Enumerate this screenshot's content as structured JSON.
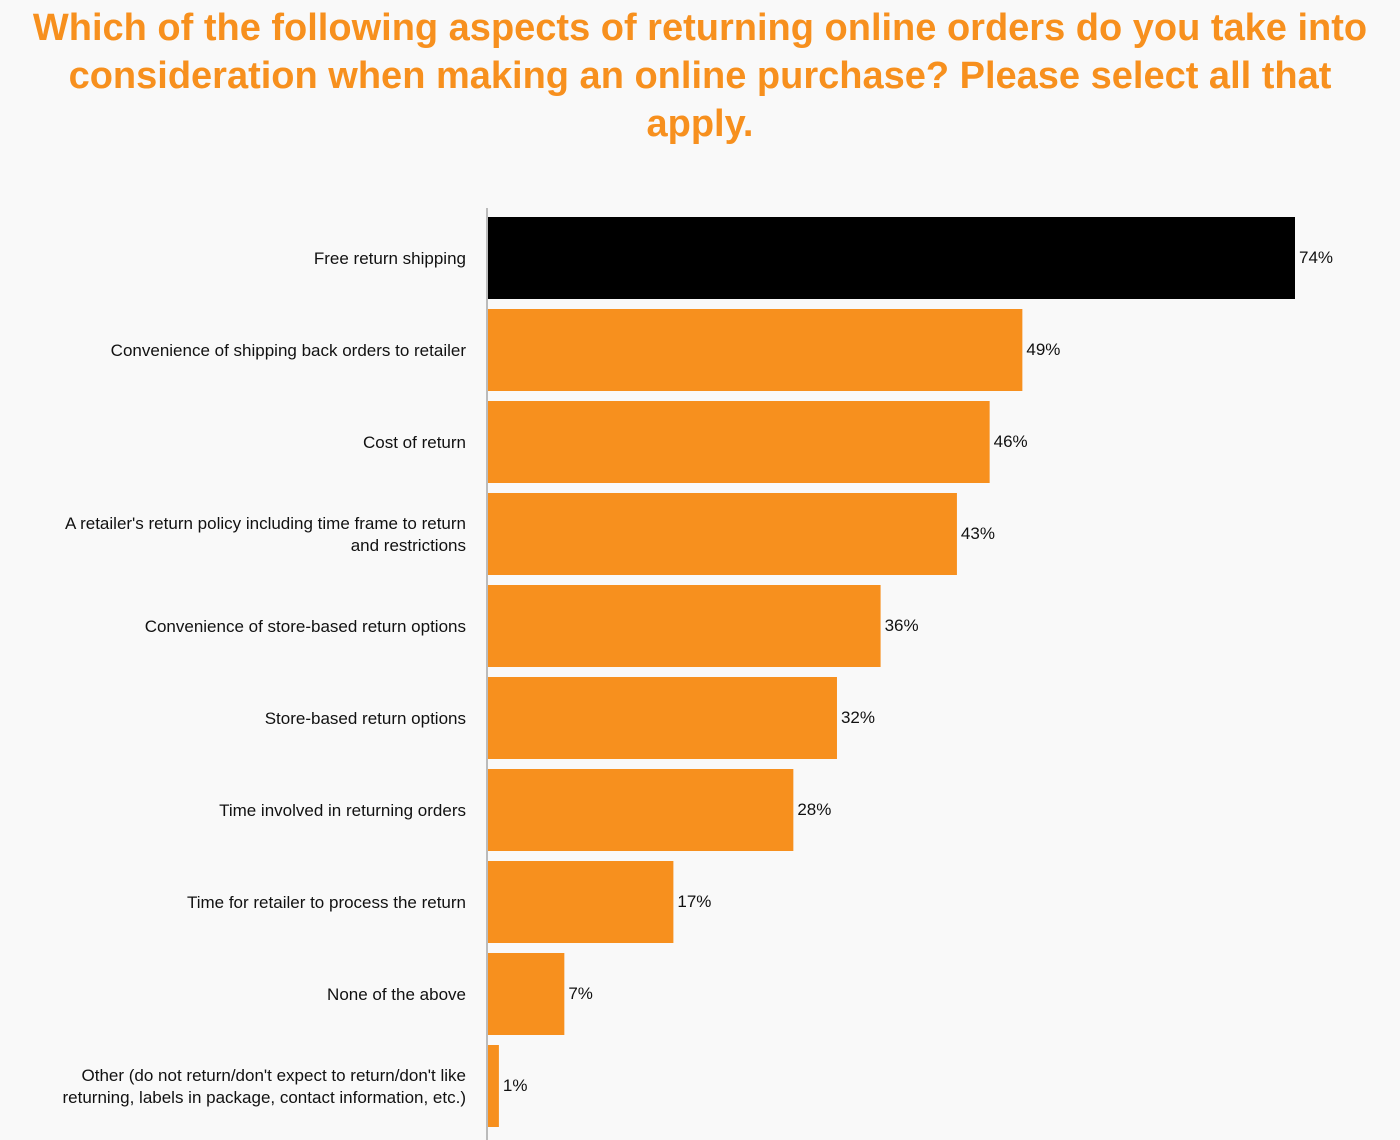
{
  "chart_data": {
    "type": "bar",
    "orientation": "horizontal",
    "title": "Which of the following aspects of returning online orders do you take into consideration when making an online purchase? Please select all that apply.",
    "categories": [
      "Free return shipping",
      "Convenience of shipping back orders to retailer",
      "Cost of return",
      "A retailer's return policy including time frame to return and restrictions",
      "Convenience of store-based return options",
      "Store-based return options",
      "Time involved in returning orders",
      "Time for retailer to process the return",
      "None of the above",
      "Other (do not return/don't expect to return/don't like returning, labels in package, contact information, etc.)"
    ],
    "category_lines": [
      [
        "Free return shipping"
      ],
      [
        "Convenience of shipping back orders to retailer"
      ],
      [
        "Cost of return"
      ],
      [
        "A retailer's return policy including time frame to return",
        "and restrictions"
      ],
      [
        "Convenience of store-based return options"
      ],
      [
        "Store-based return options"
      ],
      [
        "Time involved in returning orders"
      ],
      [
        "Time for retailer to process the return"
      ],
      [
        "None of the above"
      ],
      [
        "Other (do not return/don't expect to return/don't like",
        "returning, labels in package, contact information, etc.)"
      ]
    ],
    "values": [
      74,
      49,
      46,
      43,
      36,
      32,
      28,
      17,
      7,
      1
    ],
    "value_labels": [
      "74%",
      "49%",
      "46%",
      "43%",
      "36%",
      "32%",
      "28%",
      "17%",
      "7%",
      "1%"
    ],
    "unit": "%",
    "xlim": [
      0,
      74
    ],
    "grid": false,
    "legend": "none",
    "colors": {
      "highlight": "#000000",
      "bar": "#f7901e",
      "title": "#f7901e",
      "axis": "#bbbbbb",
      "background": "#f9f9f9"
    },
    "highlight_index": 0
  }
}
